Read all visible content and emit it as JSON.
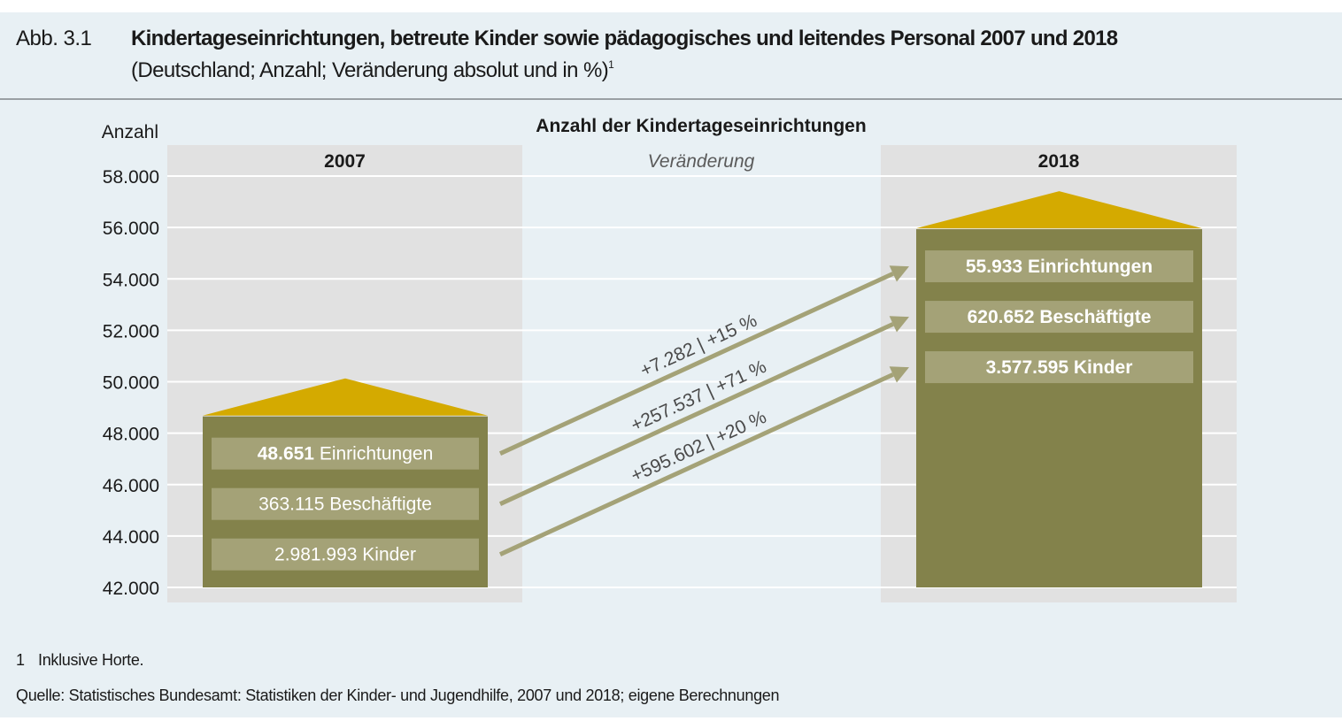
{
  "header": {
    "figure_number": "Abb. 3.1",
    "title": "Kindertageseinrichtungen, betreute Kinder sowie pädagogisches und leitendes Personal 2007 und 2018",
    "subtitle": "(Deutschland; Anzahl; Veränderung absolut und in %)",
    "subtitle_footnote_mark": "1"
  },
  "colors": {
    "page_background": "#e8f0f4",
    "panel_background": "#e1e1e1",
    "house_body": "#83824b",
    "house_roof": "#d4aa00",
    "label_box": "#a4a277",
    "arrow": "#a4a277",
    "change_text": "#4a4a4a"
  },
  "chart_data": {
    "type": "bar",
    "title": "Anzahl der Kindertageseinrichtungen",
    "ylabel": "Anzahl",
    "xlabel": "",
    "ylim": [
      42000,
      58000
    ],
    "yticks": [
      58000,
      56000,
      54000,
      52000,
      50000,
      48000,
      46000,
      44000,
      42000
    ],
    "ytick_labels": [
      "58.000",
      "56.000",
      "54.000",
      "52.000",
      "50.000",
      "48.000",
      "46.000",
      "44.000",
      "42.000"
    ],
    "grid": true,
    "categories": [
      "2007",
      "Veränderung",
      "2018"
    ],
    "series": [
      {
        "name": "Einrichtungen",
        "values": [
          48651,
          null,
          55933
        ]
      }
    ],
    "bars": [
      {
        "year": "2007",
        "value": 48651,
        "labels": [
          {
            "number": "48.651",
            "text": "Einrichtungen",
            "number_bold": true
          },
          {
            "number": "363.115",
            "text": "Beschäftigte",
            "number_bold": false
          },
          {
            "number": "2.981.993",
            "text": "Kinder",
            "number_bold": false
          }
        ]
      },
      {
        "year": "2018",
        "value": 55933,
        "labels": [
          {
            "number": "55.933",
            "text": "Einrichtungen",
            "number_bold": true
          },
          {
            "number": "620.652",
            "text": "Beschäftigte",
            "number_bold": true
          },
          {
            "number": "3.577.595",
            "text": "Kinder",
            "number_bold": true
          }
        ]
      }
    ],
    "change_header": "Veränderung",
    "changes": [
      {
        "metric": "Einrichtungen",
        "absolute": "+7.282",
        "percent": "+15 %"
      },
      {
        "metric": "Beschäftigte",
        "absolute": "+257.537",
        "percent": "+71 %"
      },
      {
        "metric": "Kinder",
        "absolute": "+595.602",
        "percent": "+20 %"
      }
    ]
  },
  "footnotes": [
    {
      "number": "1",
      "text": "Inklusive Horte."
    }
  ],
  "source": "Quelle: Statistisches Bundesamt: Statistiken der Kinder- und Jugendhilfe, 2007 und 2018; eigene Berechnungen"
}
